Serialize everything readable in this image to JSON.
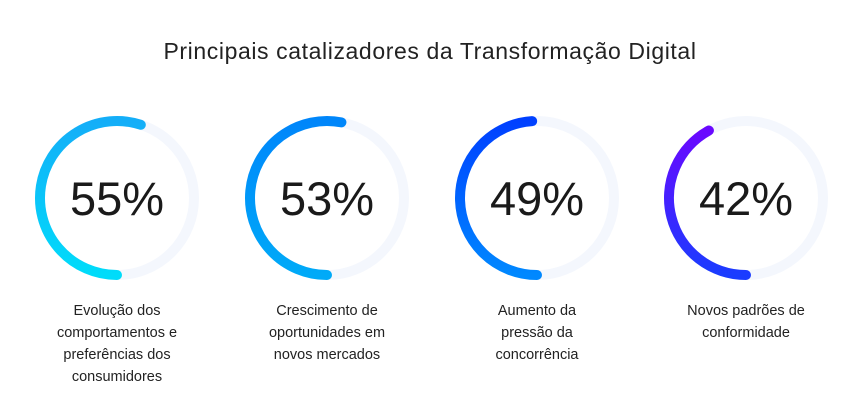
{
  "chart_data": {
    "type": "radial-progress",
    "title": "Principais catalizadores da Transformação Digital",
    "items": [
      {
        "value": 55,
        "value_label": "55%",
        "label": "Evolução dos comportamentos e preferências dos consumidores",
        "colors": [
          "#00dcfa",
          "#14aef8"
        ]
      },
      {
        "value": 53,
        "value_label": "53%",
        "label": "Crescimento de oportunidades em novos mercados",
        "colors": [
          "#00aaf8",
          "#0086fa"
        ]
      },
      {
        "value": 49,
        "value_label": "49%",
        "label": "Aumento da pressão da concorrência",
        "colors": [
          "#0088ff",
          "#0040ff"
        ]
      },
      {
        "value": 42,
        "value_label": "42%",
        "label": "Novos padrões de conformidade",
        "colors": [
          "#1a3cff",
          "#6a08ff"
        ]
      }
    ],
    "track_color": "#f4f7fd",
    "range": [
      0,
      100
    ]
  }
}
